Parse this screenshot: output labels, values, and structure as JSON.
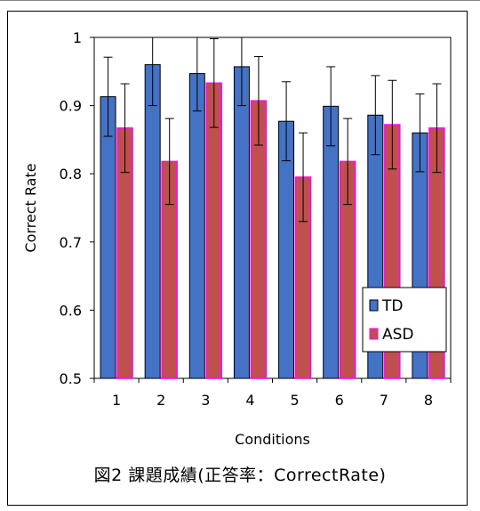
{
  "chart_data": {
    "type": "bar",
    "categories": [
      "1",
      "2",
      "3",
      "4",
      "5",
      "6",
      "7",
      "8"
    ],
    "series": [
      {
        "name": "TD",
        "color": "#4472C4",
        "values": [
          0.913,
          0.96,
          0.947,
          0.957,
          0.877,
          0.899,
          0.886,
          0.86
        ],
        "errors": [
          0.058,
          0.06,
          0.055,
          0.057,
          0.058,
          0.058,
          0.058,
          0.057
        ]
      },
      {
        "name": "ASD",
        "color": "#C0504D",
        "edge": "#FF00FF",
        "values": [
          0.867,
          0.818,
          0.933,
          0.907,
          0.795,
          0.818,
          0.872,
          0.867
        ],
        "errors": [
          0.065,
          0.063,
          0.065,
          0.065,
          0.065,
          0.063,
          0.065,
          0.065
        ]
      }
    ],
    "xlabel": "Conditions",
    "ylabel": "Correct Rate",
    "ylim": [
      0.5,
      1
    ],
    "yticks": [
      "0.5",
      "0.6",
      "0.7",
      "0.8",
      "0.9",
      "1"
    ],
    "legend_position": "bottom-right",
    "grid": false
  },
  "caption": "図2  課題成績(正答率：CorrectRate)"
}
